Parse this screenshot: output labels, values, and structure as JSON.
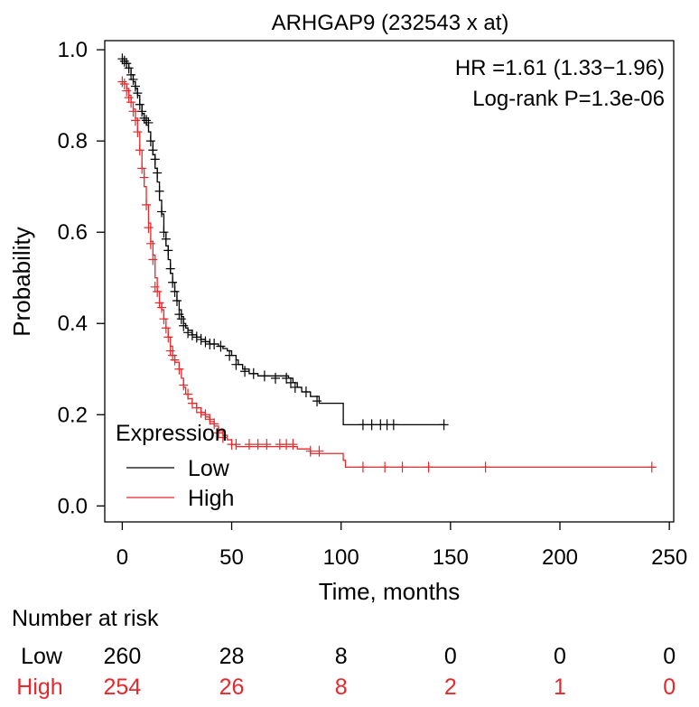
{
  "chart_data": {
    "type": "line",
    "subtype": "kaplan-meier",
    "title": "ARHGAP9 (232543 x at)",
    "xlabel": "Time, months",
    "ylabel": "Probability",
    "xlim": [
      -8,
      252
    ],
    "ylim": [
      -0.035,
      1.02
    ],
    "xticks": [
      0,
      50,
      100,
      150,
      200,
      250
    ],
    "xtick_labels": [
      "0",
      "50",
      "100",
      "150",
      "200",
      "250"
    ],
    "yticks": [
      0.0,
      0.2,
      0.4,
      0.6,
      0.8,
      1.0
    ],
    "ytick_labels": [
      "0.0",
      "0.2",
      "0.4",
      "0.6",
      "0.8",
      "1.0"
    ],
    "annotations": [
      "HR =1.61 (1.33−1.96)",
      "Log-rank P=1.3e-06"
    ],
    "legend": {
      "title": "Expression",
      "position": "bottom-left",
      "entries": [
        {
          "label": "Low",
          "color": "#000000"
        },
        {
          "label": "High",
          "color": "#e8282a"
        }
      ]
    },
    "series": [
      {
        "name": "Low",
        "color": "#000000",
        "steps": [
          [
            0,
            0.98
          ],
          [
            1,
            0.975
          ],
          [
            2,
            0.97
          ],
          [
            3,
            0.96
          ],
          [
            4,
            0.945
          ],
          [
            5,
            0.93
          ],
          [
            6,
            0.915
          ],
          [
            7,
            0.9
          ],
          [
            8,
            0.88
          ],
          [
            9,
            0.86
          ],
          [
            10,
            0.845
          ],
          [
            11,
            0.835
          ],
          [
            12,
            0.82
          ],
          [
            13,
            0.8
          ],
          [
            14,
            0.77
          ],
          [
            15,
            0.74
          ],
          [
            16,
            0.71
          ],
          [
            17,
            0.67
          ],
          [
            18,
            0.64
          ],
          [
            19,
            0.6
          ],
          [
            20,
            0.57
          ],
          [
            21,
            0.54
          ],
          [
            22,
            0.51
          ],
          [
            23,
            0.49
          ],
          [
            24,
            0.47
          ],
          [
            25,
            0.45
          ],
          [
            26,
            0.43
          ],
          [
            27,
            0.415
          ],
          [
            28,
            0.4
          ],
          [
            29,
            0.39
          ],
          [
            30,
            0.385
          ],
          [
            32,
            0.375
          ],
          [
            34,
            0.37
          ],
          [
            36,
            0.365
          ],
          [
            38,
            0.36
          ],
          [
            40,
            0.355
          ],
          [
            44,
            0.35
          ],
          [
            46,
            0.345
          ],
          [
            48,
            0.34
          ],
          [
            50,
            0.33
          ],
          [
            52,
            0.32
          ],
          [
            53,
            0.31
          ],
          [
            55,
            0.3
          ],
          [
            58,
            0.29
          ],
          [
            62,
            0.285
          ],
          [
            76,
            0.28
          ],
          [
            78,
            0.27
          ],
          [
            80,
            0.26
          ],
          [
            82,
            0.25
          ],
          [
            86,
            0.24
          ],
          [
            90,
            0.225
          ],
          [
            101,
            0.178
          ],
          [
            147,
            0.178
          ]
        ],
        "censors": [
          [
            0,
            0.98
          ],
          [
            1,
            0.975
          ],
          [
            2,
            0.97
          ],
          [
            3,
            0.96
          ],
          [
            4,
            0.945
          ],
          [
            5,
            0.935
          ],
          [
            6,
            0.92
          ],
          [
            7,
            0.905
          ],
          [
            8,
            0.88
          ],
          [
            9,
            0.865
          ],
          [
            10,
            0.85
          ],
          [
            11,
            0.845
          ],
          [
            12,
            0.84
          ],
          [
            13,
            0.8
          ],
          [
            14,
            0.78
          ],
          [
            15,
            0.76
          ],
          [
            16,
            0.73
          ],
          [
            17,
            0.69
          ],
          [
            18,
            0.645
          ],
          [
            19,
            0.6
          ],
          [
            20,
            0.585
          ],
          [
            21,
            0.56
          ],
          [
            22,
            0.52
          ],
          [
            23,
            0.49
          ],
          [
            24,
            0.47
          ],
          [
            25,
            0.45
          ],
          [
            26,
            0.42
          ],
          [
            27,
            0.41
          ],
          [
            28,
            0.395
          ],
          [
            30,
            0.38
          ],
          [
            32,
            0.375
          ],
          [
            34,
            0.37
          ],
          [
            36,
            0.365
          ],
          [
            38,
            0.36
          ],
          [
            40,
            0.355
          ],
          [
            42,
            0.355
          ],
          [
            45,
            0.35
          ],
          [
            49,
            0.33
          ],
          [
            52,
            0.31
          ],
          [
            56,
            0.295
          ],
          [
            60,
            0.29
          ],
          [
            65,
            0.285
          ],
          [
            70,
            0.28
          ],
          [
            75,
            0.28
          ],
          [
            77,
            0.27
          ],
          [
            79,
            0.26
          ],
          [
            84,
            0.25
          ],
          [
            89,
            0.23
          ],
          [
            110,
            0.178
          ],
          [
            114,
            0.178
          ],
          [
            118,
            0.178
          ],
          [
            121,
            0.178
          ],
          [
            124,
            0.178
          ],
          [
            147,
            0.178
          ]
        ]
      },
      {
        "name": "High",
        "color": "#e8282a",
        "steps": [
          [
            0,
            0.93
          ],
          [
            1,
            0.925
          ],
          [
            2,
            0.915
          ],
          [
            3,
            0.9
          ],
          [
            4,
            0.885
          ],
          [
            5,
            0.87
          ],
          [
            6,
            0.85
          ],
          [
            7,
            0.82
          ],
          [
            8,
            0.78
          ],
          [
            9,
            0.74
          ],
          [
            10,
            0.7
          ],
          [
            11,
            0.66
          ],
          [
            12,
            0.62
          ],
          [
            13,
            0.58
          ],
          [
            14,
            0.55
          ],
          [
            15,
            0.5
          ],
          [
            16,
            0.47
          ],
          [
            17,
            0.445
          ],
          [
            18,
            0.43
          ],
          [
            19,
            0.41
          ],
          [
            20,
            0.39
          ],
          [
            21,
            0.37
          ],
          [
            22,
            0.35
          ],
          [
            23,
            0.33
          ],
          [
            24,
            0.315
          ],
          [
            26,
            0.3
          ],
          [
            27,
            0.28
          ],
          [
            28,
            0.26
          ],
          [
            29,
            0.245
          ],
          [
            30,
            0.235
          ],
          [
            32,
            0.225
          ],
          [
            34,
            0.215
          ],
          [
            36,
            0.205
          ],
          [
            38,
            0.195
          ],
          [
            40,
            0.185
          ],
          [
            42,
            0.175
          ],
          [
            44,
            0.165
          ],
          [
            46,
            0.155
          ],
          [
            48,
            0.145
          ],
          [
            50,
            0.135
          ],
          [
            52,
            0.13
          ],
          [
            80,
            0.125
          ],
          [
            86,
            0.115
          ],
          [
            101,
            0.1
          ],
          [
            102,
            0.085
          ],
          [
            243,
            0.085
          ]
        ],
        "censors": [
          [
            0,
            0.93
          ],
          [
            1,
            0.925
          ],
          [
            2,
            0.91
          ],
          [
            3,
            0.895
          ],
          [
            4,
            0.885
          ],
          [
            5,
            0.865
          ],
          [
            6,
            0.845
          ],
          [
            7,
            0.82
          ],
          [
            8,
            0.78
          ],
          [
            9,
            0.74
          ],
          [
            10,
            0.72
          ],
          [
            11,
            0.66
          ],
          [
            12,
            0.61
          ],
          [
            13,
            0.575
          ],
          [
            14,
            0.54
          ],
          [
            15,
            0.48
          ],
          [
            16,
            0.47
          ],
          [
            17,
            0.445
          ],
          [
            18,
            0.435
          ],
          [
            19,
            0.41
          ],
          [
            20,
            0.39
          ],
          [
            21,
            0.37
          ],
          [
            22,
            0.34
          ],
          [
            23,
            0.33
          ],
          [
            24,
            0.32
          ],
          [
            26,
            0.3
          ],
          [
            28,
            0.265
          ],
          [
            30,
            0.245
          ],
          [
            32,
            0.225
          ],
          [
            34,
            0.215
          ],
          [
            36,
            0.205
          ],
          [
            38,
            0.2
          ],
          [
            40,
            0.19
          ],
          [
            42,
            0.18
          ],
          [
            44,
            0.16
          ],
          [
            46,
            0.15
          ],
          [
            50,
            0.135
          ],
          [
            52,
            0.135
          ],
          [
            58,
            0.135
          ],
          [
            62,
            0.135
          ],
          [
            66,
            0.135
          ],
          [
            72,
            0.135
          ],
          [
            75,
            0.135
          ],
          [
            78,
            0.135
          ],
          [
            86,
            0.12
          ],
          [
            90,
            0.12
          ],
          [
            110,
            0.085
          ],
          [
            120,
            0.085
          ],
          [
            128,
            0.085
          ],
          [
            140,
            0.085
          ],
          [
            166,
            0.085
          ],
          [
            242,
            0.085
          ]
        ]
      }
    ],
    "risk_table": {
      "title": "Number at risk",
      "times": [
        0,
        50,
        100,
        150,
        200,
        250
      ],
      "rows": [
        {
          "label": "Low",
          "color": "#000000",
          "values": [
            "260",
            "28",
            "8",
            "0",
            "0",
            "0"
          ]
        },
        {
          "label": "High",
          "color": "#e8282a",
          "values": [
            "254",
            "26",
            "8",
            "2",
            "1",
            "0"
          ]
        }
      ]
    }
  }
}
